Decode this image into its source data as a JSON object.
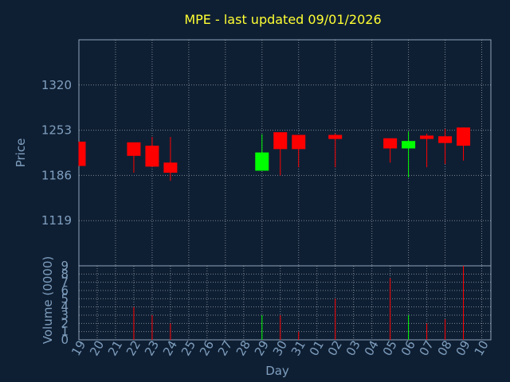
{
  "chart_data": {
    "type": "candlestick",
    "title": "MPE - last updated 09/01/2026",
    "xlabel": "Day",
    "price_ylabel": "Price",
    "volume_ylabel": "Volume (0000)",
    "x_ticks": [
      "19",
      "20",
      "21",
      "22",
      "23",
      "24",
      "25",
      "26",
      "27",
      "28",
      "29",
      "30",
      "31",
      "01",
      "02",
      "03",
      "04",
      "05",
      "06",
      "07",
      "08",
      "09",
      "10"
    ],
    "price_ticks": [
      "1320",
      "1253",
      "1186",
      "1119"
    ],
    "price_ylim": [
      1052,
      1387
    ],
    "volume_ticks": [
      "0",
      "1",
      "2",
      "3",
      "4",
      "5",
      "6",
      "7",
      "8",
      "9"
    ],
    "volume_ylim": [
      0,
      9
    ],
    "grid": true,
    "colors": {
      "up": "#00ff00",
      "down": "#ff0000",
      "background": "#0f1f33",
      "title": "#ffff33",
      "axis": "#7f9fbf"
    },
    "candles": [
      {
        "day": "19",
        "open": 1236,
        "high": 1236,
        "low": 1200,
        "close": 1200,
        "volume": 0
      },
      {
        "day": "22",
        "open": 1235,
        "high": 1235,
        "low": 1190,
        "close": 1215,
        "volume": 4
      },
      {
        "day": "23",
        "open": 1230,
        "high": 1243,
        "low": 1199,
        "close": 1199,
        "volume": 3
      },
      {
        "day": "24",
        "open": 1205,
        "high": 1243,
        "low": 1178,
        "close": 1190,
        "volume": 2
      },
      {
        "day": "29",
        "open": 1193,
        "high": 1247,
        "low": 1193,
        "close": 1220,
        "volume": 3
      },
      {
        "day": "30",
        "open": 1250,
        "high": 1250,
        "low": 1186,
        "close": 1225,
        "volume": 3
      },
      {
        "day": "31",
        "open": 1246,
        "high": 1246,
        "low": 1198,
        "close": 1225,
        "volume": 1
      },
      {
        "day": "02",
        "open": 1246,
        "high": 1248,
        "low": 1198,
        "close": 1240,
        "volume": 5
      },
      {
        "day": "05",
        "open": 1241,
        "high": 1241,
        "low": 1205,
        "close": 1226,
        "volume": 7.5
      },
      {
        "day": "06",
        "open": 1226,
        "high": 1251,
        "low": 1183,
        "close": 1237,
        "volume": 3
      },
      {
        "day": "07",
        "open": 1245,
        "high": 1248,
        "low": 1198,
        "close": 1240,
        "volume": 2
      },
      {
        "day": "08",
        "open": 1244,
        "high": 1255,
        "low": 1203,
        "close": 1234,
        "volume": 2.5
      },
      {
        "day": "09",
        "open": 1257,
        "high": 1257,
        "low": 1208,
        "close": 1230,
        "volume": 9
      }
    ]
  }
}
